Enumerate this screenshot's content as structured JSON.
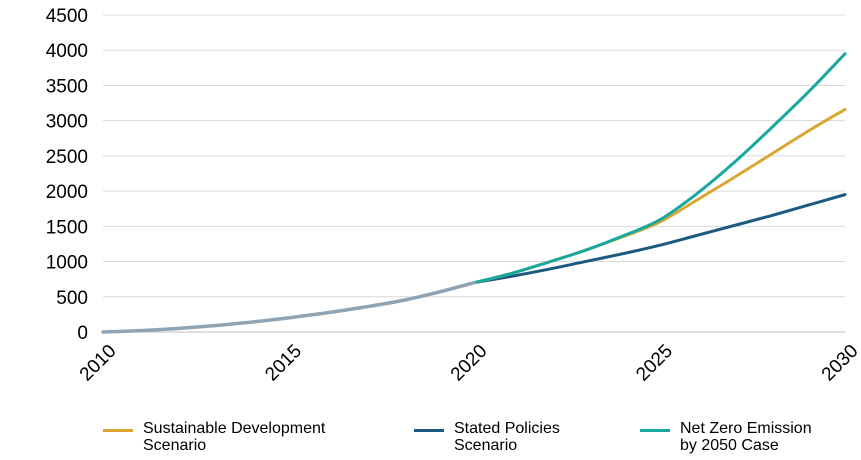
{
  "chart_data": {
    "type": "line",
    "x": [
      2010,
      2015,
      2020,
      2025,
      2030
    ],
    "xlim": [
      2010,
      2030
    ],
    "ylim": [
      0,
      4500
    ],
    "yticks": [
      0,
      500,
      1000,
      1500,
      2000,
      2500,
      3000,
      3500,
      4000,
      4500
    ],
    "xticks": [
      "2010",
      "2015",
      "2020",
      "2025",
      "2030"
    ],
    "grid": "horizontal",
    "legend_position": "bottom",
    "history": {
      "color": "#8fa3b3",
      "points": [
        [
          2010,
          0
        ],
        [
          2011,
          20
        ],
        [
          2012,
          50
        ],
        [
          2013,
          90
        ],
        [
          2014,
          140
        ],
        [
          2015,
          200
        ],
        [
          2016,
          270
        ],
        [
          2017,
          350
        ],
        [
          2018,
          440
        ],
        [
          2019,
          560
        ],
        [
          2020,
          700
        ]
      ]
    },
    "series": [
      {
        "name": "Sustainable Development\nScenario",
        "color": "#d9a632",
        "points": [
          [
            2020,
            700
          ],
          [
            2021,
            830
          ],
          [
            2022,
            990
          ],
          [
            2023,
            1160
          ],
          [
            2024,
            1350
          ],
          [
            2025,
            1560
          ],
          [
            2026,
            1870
          ],
          [
            2027,
            2190
          ],
          [
            2028,
            2520
          ],
          [
            2029,
            2850
          ],
          [
            2030,
            3160
          ]
        ]
      },
      {
        "name": "Stated Policies\nScenario",
        "color": "#1c5a82",
        "points": [
          [
            2020,
            700
          ],
          [
            2021,
            790
          ],
          [
            2022,
            890
          ],
          [
            2023,
            1000
          ],
          [
            2024,
            1110
          ],
          [
            2025,
            1230
          ],
          [
            2026,
            1370
          ],
          [
            2027,
            1510
          ],
          [
            2028,
            1650
          ],
          [
            2029,
            1800
          ],
          [
            2030,
            1950
          ]
        ]
      },
      {
        "name": "Net Zero Emission\nby 2050 Case",
        "color": "#19a8a0",
        "points": [
          [
            2020,
            700
          ],
          [
            2021,
            830
          ],
          [
            2022,
            990
          ],
          [
            2023,
            1160
          ],
          [
            2024,
            1360
          ],
          [
            2025,
            1590
          ],
          [
            2026,
            1960
          ],
          [
            2027,
            2400
          ],
          [
            2028,
            2890
          ],
          [
            2029,
            3400
          ],
          [
            2030,
            3950
          ]
        ]
      }
    ]
  }
}
